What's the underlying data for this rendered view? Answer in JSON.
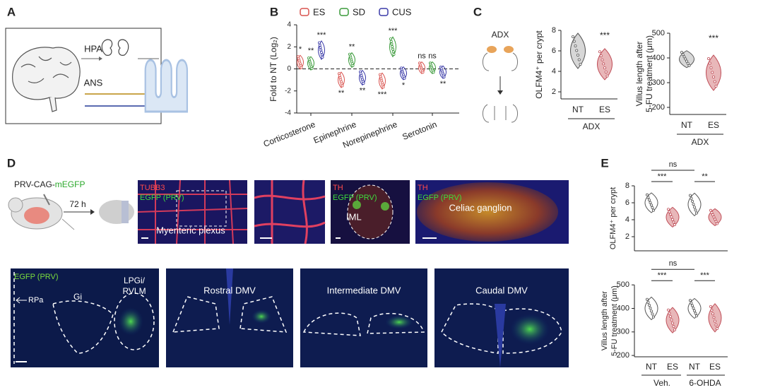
{
  "panels": {
    "a": {
      "label": "A",
      "hpa": "HPA",
      "ans": "ANS"
    },
    "b": {
      "label": "B",
      "legend": [
        "ES",
        "SD",
        "CUS"
      ],
      "y_axis_label": "Fold to NT (Log₂)",
      "yticks": [
        4,
        2,
        0,
        -2,
        -4
      ],
      "categories": [
        "Corticosterone",
        "Epinephrine",
        "Norepinephrine",
        "Serotonin"
      ],
      "significance": [
        [
          "*",
          "**",
          "***"
        ],
        [
          "**",
          "**",
          "**"
        ],
        [
          "***",
          "***",
          "*"
        ],
        [
          "ns",
          "ns",
          "**"
        ]
      ]
    },
    "c": {
      "label": "C",
      "diagram": "ADX",
      "chart1": {
        "y_axis_label": "OLFM4⁺ per crypt",
        "yticks": [
          2,
          4,
          6,
          8
        ],
        "categories": [
          "NT",
          "ES"
        ],
        "group": "ADX",
        "significance": "***"
      },
      "chart2": {
        "y_axis_label": [
          "Villus length after",
          "5-FU treatment (μm)"
        ],
        "yticks": [
          200,
          300,
          400,
          500
        ],
        "categories": [
          "NT",
          "ES"
        ],
        "group": "ADX",
        "significance": "***"
      }
    },
    "d": {
      "label": "D",
      "virus_prefix": "PRV-CAG-",
      "virus_reporter": "mEGFP",
      "time": "72 h",
      "images_top": [
        {
          "stains": [
            "TUBB3",
            "EGFP (PRV)"
          ],
          "caption": "Myenteric plexus"
        },
        {
          "stains": [
            "TH",
            "EGFP (PRV)"
          ],
          "caption": "IML"
        },
        {
          "stains": [
            "TH",
            "EGFP (PRV)"
          ],
          "caption": "Celiac ganglion"
        }
      ],
      "images_bottom": [
        {
          "stain": "EGFP (PRV)",
          "regions": [
            "RPa",
            "Gi",
            "LPGi/",
            "RVLM"
          ]
        },
        {
          "caption": "Rostral DMV"
        },
        {
          "caption": "Intermediate DMV"
        },
        {
          "caption": "Caudal DMV"
        }
      ]
    },
    "e": {
      "label": "E",
      "chart1": {
        "y_axis_label": "OLFM4⁺ per crypt",
        "yticks": [
          2,
          4,
          6,
          8
        ],
        "significance": [
          "ns",
          "***",
          "**"
        ]
      },
      "chart2": {
        "y_axis_label": [
          "Villus length after",
          "5-FU treatment (μm)"
        ],
        "yticks": [
          200,
          300,
          400,
          500
        ],
        "significance": [
          "ns",
          "***",
          "***"
        ]
      },
      "categories": [
        "NT",
        "ES",
        "NT",
        "ES"
      ],
      "groups": [
        "Veh.",
        "6-OHDA"
      ]
    }
  }
}
